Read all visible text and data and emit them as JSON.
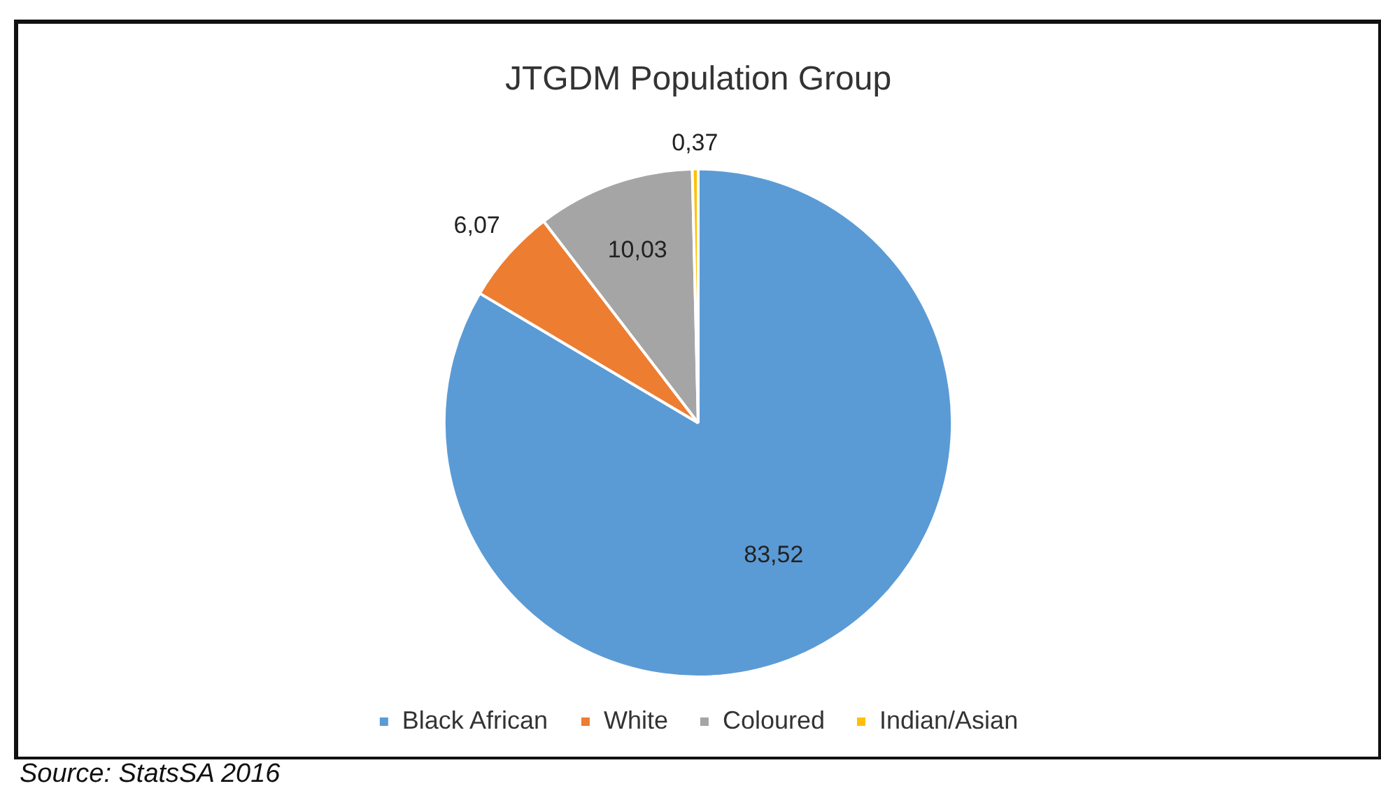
{
  "chart_data": {
    "type": "pie",
    "title": "JTGDM Population Group",
    "categories": [
      "Black African",
      "White",
      "Coloured",
      "Indian/Asian"
    ],
    "values": [
      83.52,
      6.07,
      10.03,
      0.37
    ],
    "colors": [
      "#5b9bd5",
      "#ed7d31",
      "#a5a5a5",
      "#ffc000"
    ],
    "value_labels": [
      "83,52",
      "6,07",
      "10,03",
      "0,37"
    ],
    "legend": "bottom",
    "annotations": [
      "Source: StatsSA 2016"
    ]
  }
}
